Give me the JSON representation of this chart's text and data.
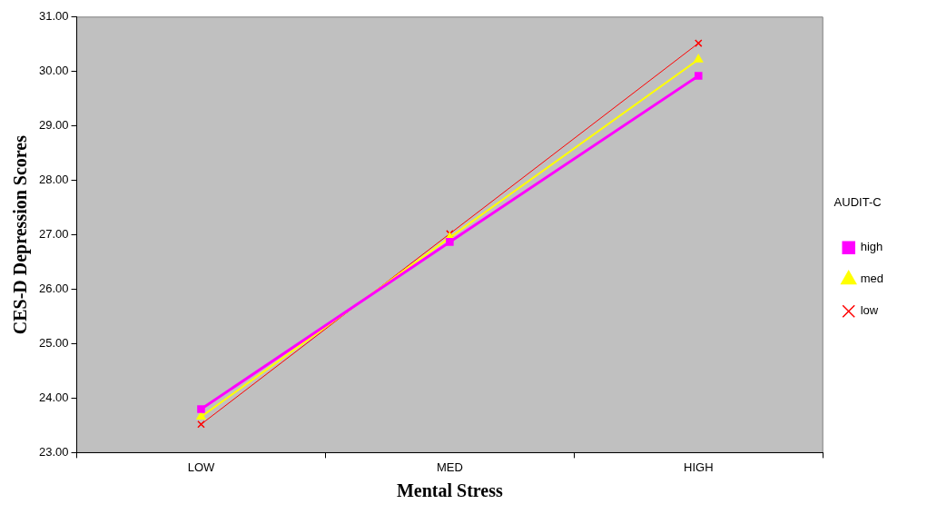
{
  "chart_data": {
    "type": "line",
    "xlabel": "Mental Stress",
    "ylabel": "CES-D Depression Scores",
    "legend_title": "AUDIT-C",
    "legend": "right",
    "grid": false,
    "categories": [
      "LOW",
      "MED",
      "HIGH"
    ],
    "ylim": [
      23,
      31
    ],
    "yticks": [
      {
        "value": 23,
        "label": "23.00"
      },
      {
        "value": 24,
        "label": "24.00"
      },
      {
        "value": 25,
        "label": "25.00"
      },
      {
        "value": 26,
        "label": "26.00"
      },
      {
        "value": 27,
        "label": "27.00"
      },
      {
        "value": 28,
        "label": "28.00"
      },
      {
        "value": 29,
        "label": "29.00"
      },
      {
        "value": 30,
        "label": "30.00"
      },
      {
        "value": 31,
        "label": "31.00"
      }
    ],
    "series": [
      {
        "name": "high",
        "color": "#ff00ff",
        "marker": "square",
        "values": [
          23.8,
          26.87,
          29.92
        ]
      },
      {
        "name": "med",
        "color": "#ffff00",
        "marker": "triangle",
        "values": [
          23.66,
          26.95,
          30.22
        ]
      },
      {
        "name": "low",
        "color": "#ff0000",
        "marker": "cross",
        "values": [
          23.52,
          27.02,
          30.52
        ]
      }
    ]
  }
}
